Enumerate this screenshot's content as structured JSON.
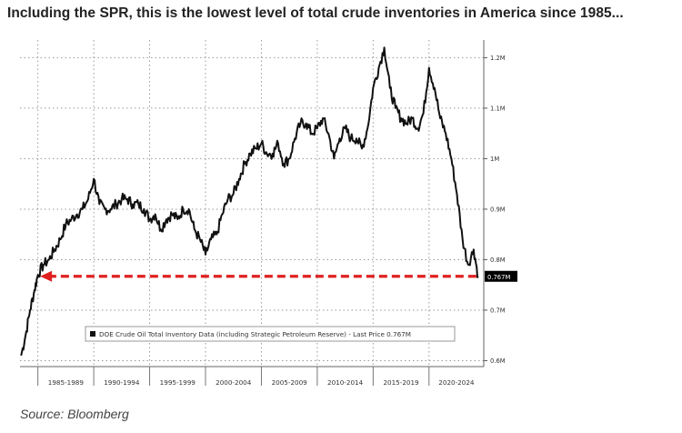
{
  "header": {
    "title": "Including the SPR, this is the lowest level of total crude inventories in America since 1985..."
  },
  "footer": {
    "source": "Source: Bloomberg"
  },
  "colors": {
    "line": "#111111",
    "arrow": "#e02020",
    "grid": "#9a9a9a",
    "last_price_bg": "#000000",
    "last_price_text": "#ffffff"
  },
  "chart_data": {
    "type": "line",
    "title": "",
    "xlabel": "",
    "ylabel": "",
    "ylim": [
      0.59,
      1.235
    ],
    "xlim": [
      1983.4,
      2024.9
    ],
    "yticks": [
      {
        "value": 0.6,
        "label": "0.6M"
      },
      {
        "value": 0.7,
        "label": "0.7M"
      },
      {
        "value": 0.8,
        "label": "0.8M"
      },
      {
        "value": 0.9,
        "label": "0.9M"
      },
      {
        "value": 1.0,
        "label": "1M"
      },
      {
        "value": 1.1,
        "label": "1.1M"
      },
      {
        "value": 1.2,
        "label": "1.2M"
      }
    ],
    "x_periods": [
      "1985-1989",
      "1990-1994",
      "1995-1999",
      "2000-2004",
      "2005-2009",
      "2010-2014",
      "2015-2019",
      "2020-2024"
    ],
    "x_period_starts": [
      1985,
      1990,
      1995,
      2000,
      2005,
      2010,
      2015,
      2020,
      2025
    ],
    "legend": "DOE Crude Oil Total Inventory Data (including Strategic Petroleum Reserve) - Last Price 0.767M",
    "last_price_label": "0.767M",
    "last_price": 0.767,
    "annotation": "dashed red arrow from the latest value back to the 1985 level",
    "series": [
      {
        "name": "DOE Crude Oil Total Inventory Data (including Strategic Petroleum Reserve)",
        "x": [
          1983.5,
          1983.9,
          1984.3,
          1984.7,
          1985.0,
          1985.5,
          1986.0,
          1986.5,
          1987.0,
          1987.5,
          1988.0,
          1988.5,
          1989.0,
          1989.5,
          1990.0,
          1990.5,
          1991.0,
          1991.5,
          1992.0,
          1992.5,
          1993.0,
          1993.5,
          1994.0,
          1994.5,
          1995.0,
          1995.5,
          1996.0,
          1996.5,
          1997.0,
          1997.5,
          1998.0,
          1998.5,
          1999.0,
          1999.5,
          2000.0,
          2000.5,
          2001.0,
          2001.5,
          2002.0,
          2002.5,
          2003.0,
          2003.5,
          2004.0,
          2004.5,
          2005.0,
          2005.5,
          2006.0,
          2006.5,
          2007.0,
          2007.5,
          2008.0,
          2008.5,
          2009.0,
          2009.5,
          2010.0,
          2010.5,
          2011.0,
          2011.5,
          2012.0,
          2012.5,
          2013.0,
          2013.5,
          2014.0,
          2014.5,
          2015.0,
          2015.5,
          2016.0,
          2016.5,
          2017.0,
          2017.5,
          2018.0,
          2018.5,
          2019.0,
          2019.5,
          2020.0,
          2020.5,
          2021.0,
          2021.5,
          2022.0,
          2022.5,
          2023.0,
          2023.5,
          2024.0,
          2024.4
        ],
        "values": [
          0.61,
          0.65,
          0.7,
          0.74,
          0.77,
          0.79,
          0.8,
          0.82,
          0.84,
          0.87,
          0.88,
          0.89,
          0.9,
          0.92,
          0.96,
          0.91,
          0.9,
          0.9,
          0.91,
          0.92,
          0.92,
          0.91,
          0.91,
          0.9,
          0.88,
          0.89,
          0.86,
          0.88,
          0.89,
          0.88,
          0.9,
          0.9,
          0.86,
          0.84,
          0.81,
          0.84,
          0.85,
          0.89,
          0.92,
          0.93,
          0.96,
          0.99,
          1.01,
          1.02,
          1.03,
          1.01,
          1.01,
          1.03,
          0.99,
          1.0,
          1.04,
          1.07,
          1.07,
          1.05,
          1.06,
          1.08,
          1.05,
          1.0,
          1.04,
          1.06,
          1.04,
          1.04,
          1.02,
          1.06,
          1.14,
          1.18,
          1.22,
          1.14,
          1.1,
          1.08,
          1.07,
          1.08,
          1.06,
          1.09,
          1.18,
          1.14,
          1.08,
          1.05,
          1.0,
          0.93,
          0.84,
          0.79,
          0.82,
          0.767
        ]
      }
    ]
  }
}
